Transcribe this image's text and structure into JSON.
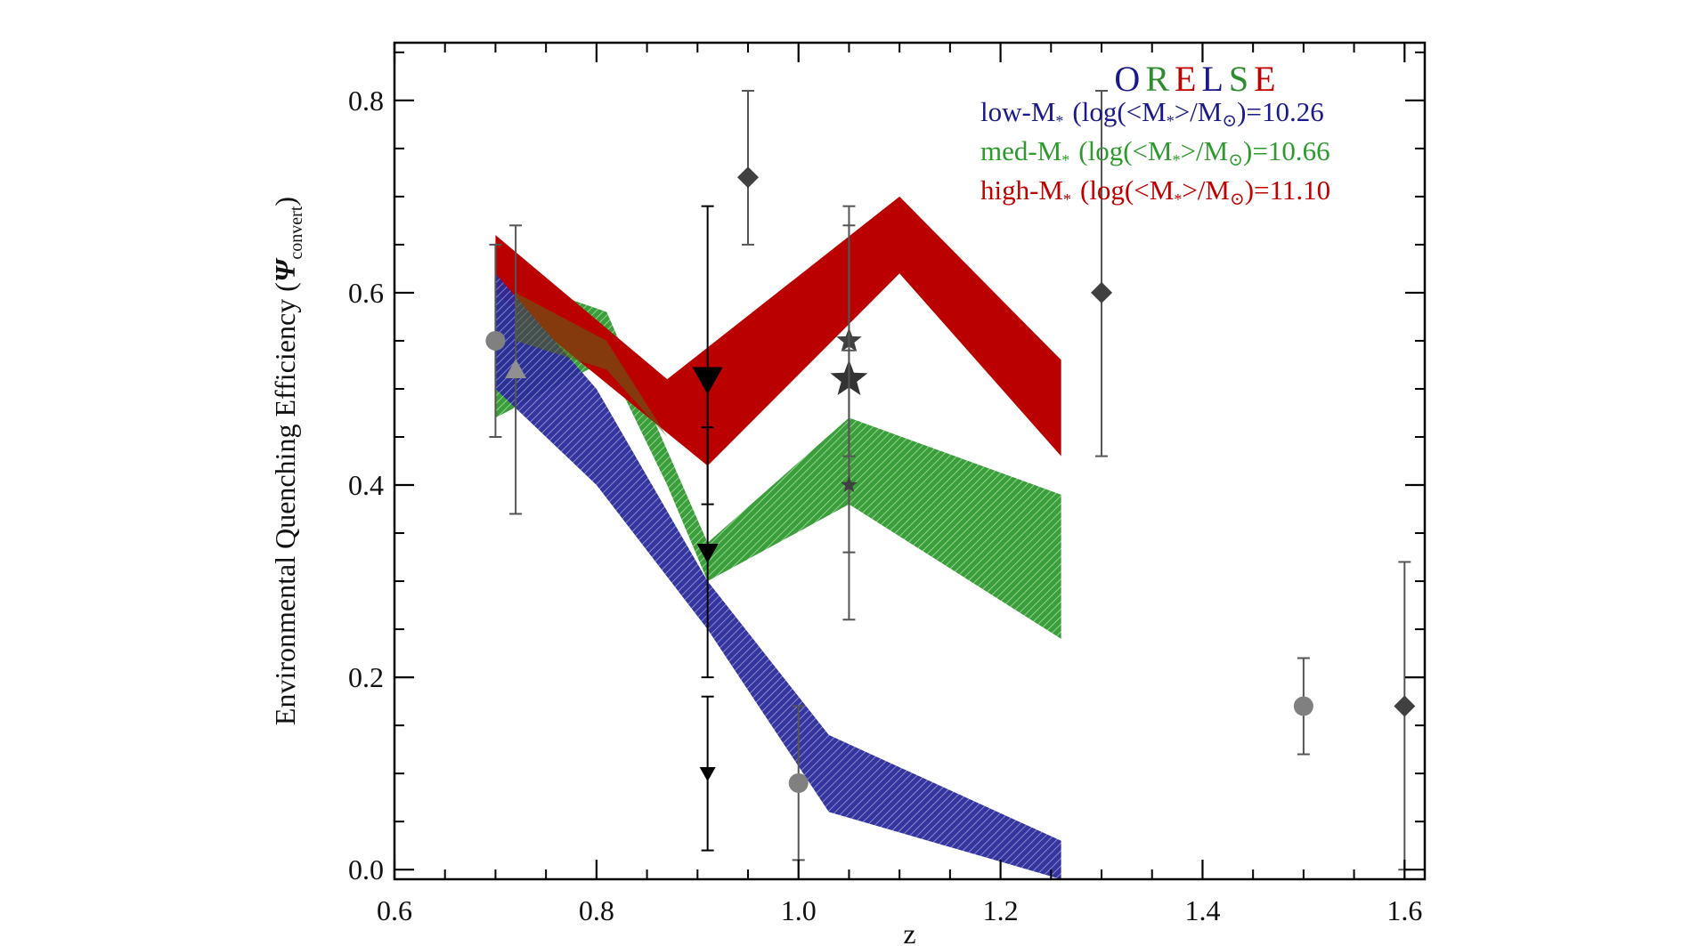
{
  "chart_data": {
    "type": "area",
    "title": "ORELSE",
    "title_letters": [
      {
        "char": "O",
        "color": "#1a1a8c"
      },
      {
        "char": "R",
        "color": "#2e8b2e"
      },
      {
        "char": "E",
        "color": "#c00000"
      },
      {
        "char": "L",
        "color": "#1a1a8c"
      },
      {
        "char": "S",
        "color": "#2e8b2e"
      },
      {
        "char": "E",
        "color": "#c00000"
      }
    ],
    "xlabel": "z",
    "ylabel_main": "Environmental Quenching Efficiency (",
    "ylabel_symbol": "Ψ",
    "ylabel_sub": "convert",
    "ylabel_close": ")",
    "xlim": [
      0.6,
      1.62
    ],
    "ylim": [
      -0.01,
      0.86
    ],
    "x_ticks": [
      0.6,
      0.8,
      1.0,
      1.2,
      1.4,
      1.6
    ],
    "x_tick_labels": [
      "0.6",
      "0.8",
      "1.0",
      "1.2",
      "1.4",
      "1.6"
    ],
    "y_ticks": [
      0.0,
      0.2,
      0.4,
      0.6,
      0.8
    ],
    "y_tick_labels": [
      "0.0",
      "0.2",
      "0.4",
      "0.6",
      "0.8"
    ],
    "legend_position": "top-right",
    "series": [
      {
        "name": "low-M",
        "legend_value": "10.26",
        "color": "#1f1f8f",
        "hatched": true,
        "upper": [
          [
            0.7,
            0.62
          ],
          [
            0.8,
            0.5
          ],
          [
            0.91,
            0.3
          ],
          [
            1.03,
            0.14
          ],
          [
            1.26,
            0.03
          ]
        ],
        "lower": [
          [
            0.7,
            0.5
          ],
          [
            0.8,
            0.4
          ],
          [
            0.91,
            0.25
          ],
          [
            1.03,
            0.06
          ],
          [
            1.26,
            -0.01
          ]
        ]
      },
      {
        "name": "med-M",
        "legend_value": "10.66",
        "color": "#2e9a2e",
        "hatched": true,
        "upper": [
          [
            0.7,
            0.62
          ],
          [
            0.81,
            0.58
          ],
          [
            0.91,
            0.34
          ],
          [
            1.05,
            0.47
          ],
          [
            1.26,
            0.39
          ]
        ],
        "lower": [
          [
            0.7,
            0.47
          ],
          [
            0.81,
            0.53
          ],
          [
            0.87,
            0.4
          ],
          [
            0.91,
            0.3
          ],
          [
            1.05,
            0.38
          ],
          [
            1.26,
            0.24
          ]
        ]
      },
      {
        "name": "high-M",
        "legend_value": "11.10",
        "color": "#bb0000",
        "hatched": false,
        "upper": [
          [
            0.7,
            0.66
          ],
          [
            0.87,
            0.51
          ],
          [
            1.1,
            0.7
          ],
          [
            1.26,
            0.53
          ]
        ],
        "lower": [
          [
            0.7,
            0.6
          ],
          [
            0.91,
            0.42
          ],
          [
            1.1,
            0.62
          ],
          [
            1.26,
            0.43
          ]
        ]
      }
    ],
    "legend_template": {
      "prefix": "(log(<M",
      "mid": ">/M",
      "suffix": ")="
    },
    "literature_points": [
      {
        "marker": "circle",
        "x": 0.7,
        "y": 0.55,
        "yerr_lo": 0.45,
        "yerr_hi": 0.65,
        "color": "#808080",
        "size": 22
      },
      {
        "marker": "triangle-up",
        "x": 0.72,
        "y": 0.52,
        "yerr_lo": 0.37,
        "yerr_hi": 0.67,
        "color": "#909090",
        "size": 24
      },
      {
        "marker": "diamond",
        "x": 0.95,
        "y": 0.72,
        "yerr_lo": 0.65,
        "yerr_hi": 0.81,
        "color": "#404040",
        "size": 24
      },
      {
        "marker": "triangle-down",
        "x": 0.91,
        "y": 0.51,
        "yerr_lo": 0.38,
        "yerr_hi": 0.69,
        "color": "#000000",
        "size": 34
      },
      {
        "marker": "triangle-down",
        "x": 0.91,
        "y": 0.33,
        "yerr_lo": 0.2,
        "yerr_hi": 0.46,
        "color": "#000000",
        "size": 24
      },
      {
        "marker": "triangle-down",
        "x": 0.91,
        "y": 0.1,
        "yerr_lo": 0.02,
        "yerr_hi": 0.18,
        "color": "#000000",
        "size": 18
      },
      {
        "marker": "circle",
        "x": 1.0,
        "y": 0.09,
        "yerr_lo": 0.01,
        "yerr_hi": 0.17,
        "color": "#808080",
        "size": 22
      },
      {
        "marker": "star",
        "x": 1.05,
        "y": 0.55,
        "yerr_lo": 0.43,
        "yerr_hi": 0.67,
        "color": "#404040",
        "size": 30
      },
      {
        "marker": "star",
        "x": 1.05,
        "y": 0.51,
        "yerr_lo": 0.33,
        "yerr_hi": 0.69,
        "color": "#333333",
        "size": 44
      },
      {
        "marker": "star",
        "x": 1.05,
        "y": 0.4,
        "yerr_lo": 0.26,
        "yerr_hi": 0.54,
        "color": "#404040",
        "size": 20
      },
      {
        "marker": "diamond",
        "x": 1.3,
        "y": 0.6,
        "yerr_lo": 0.43,
        "yerr_hi": 0.81,
        "color": "#404040",
        "size": 24
      },
      {
        "marker": "circle",
        "x": 1.5,
        "y": 0.17,
        "yerr_lo": 0.12,
        "yerr_hi": 0.22,
        "color": "#808080",
        "size": 22
      },
      {
        "marker": "diamond",
        "x": 1.6,
        "y": 0.17,
        "yerr_lo": 0.0,
        "yerr_hi": 0.32,
        "color": "#404040",
        "size": 24
      }
    ]
  }
}
